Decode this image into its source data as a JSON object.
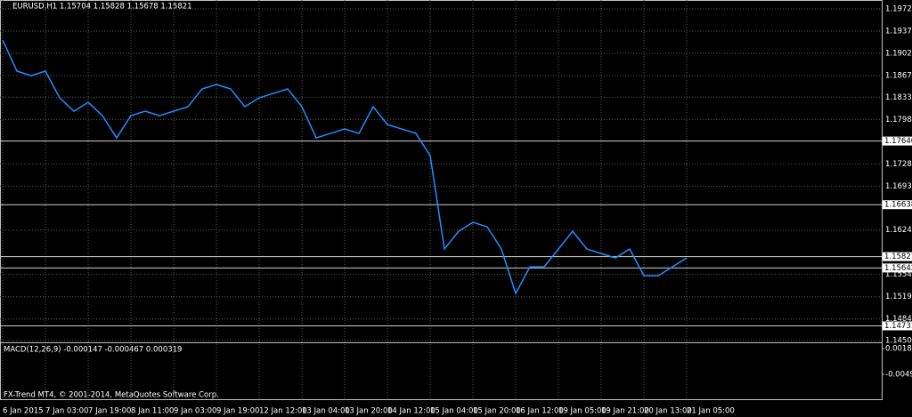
{
  "chart_data": [
    {
      "type": "line",
      "title": "EURUSD,H1  1.15704 1.15828 1.15678 1.15821",
      "categories": [
        "6 Jan 2015",
        null,
        null,
        "7 Jan 03:00",
        null,
        null,
        "7 Jan 19:00",
        null,
        null,
        "8 Jan 11:00",
        null,
        null,
        "9 Jan 03:00",
        null,
        null,
        "9 Jan 19:00",
        null,
        null,
        "12 Jan 12:00",
        null,
        null,
        "13 Jan 04:00",
        null,
        null,
        "13 Jan 20:00",
        null,
        null,
        "14 Jan 12:00",
        null,
        null,
        "15 Jan 04:00",
        null,
        null,
        "15 Jan 20:00",
        null,
        null,
        "16 Jan 12:00",
        null,
        null,
        "19 Jan 05:00",
        null,
        null,
        "19 Jan 21:00",
        null,
        null,
        "20 Jan 13:00",
        null,
        null,
        "21 Jan 05:00"
      ],
      "values": [
        1.1923,
        1.1874,
        1.1867,
        1.1874,
        1.1832,
        1.1811,
        1.1825,
        1.1804,
        1.1769,
        1.1804,
        1.1811,
        1.1804,
        1.1811,
        1.1818,
        1.1846,
        1.1853,
        1.1846,
        1.1818,
        1.1832,
        1.1839,
        1.1846,
        1.1818,
        1.1769,
        1.1776,
        1.1783,
        1.1776,
        1.1818,
        1.179,
        1.1783,
        1.1776,
        1.1741,
        1.1594,
        1.1622,
        1.1636,
        1.1629,
        1.1594,
        1.1524,
        1.1566,
        1.1566,
        1.1594,
        1.1622,
        1.1594,
        1.1587,
        1.158,
        1.1594,
        1.1552,
        1.1552,
        1.1566,
        1.158
      ],
      "color": "#1e90ff",
      "ylim": [
        1.145,
        1.1972
      ],
      "yticks": [
        {
          "value": 1.1972,
          "label": "1.19720"
        },
        {
          "value": 1.1937,
          "label": "1.19370"
        },
        {
          "value": 1.1902,
          "label": "1.19020"
        },
        {
          "value": 1.1867,
          "label": "1.18670"
        },
        {
          "value": 1.1833,
          "label": "1.18330"
        },
        {
          "value": 1.1798,
          "label": "1.17980"
        },
        {
          "value": 1.1728,
          "label": "1.17280"
        },
        {
          "value": 1.1693,
          "label": "1.16930"
        },
        {
          "value": 1.1624,
          "label": "1.16240"
        },
        {
          "value": 1.1554,
          "label": "1.15540"
        },
        {
          "value": 1.1519,
          "label": "1.15190"
        },
        {
          "value": 1.1484,
          "label": "1.14840"
        },
        {
          "value": 1.145,
          "label": "1.14500"
        }
      ],
      "levels": [
        {
          "value": 1.1764,
          "label": "1.17640"
        },
        1.16638,
        1.15821,
        1.15642,
        1.14731
      ],
      "grid": true
    },
    {
      "type": "indicator",
      "title": "MACD(12,26,9) -0.000147 -0.000467 0.000319",
      "ylim": [
        -0.004923,
        0.001803
      ],
      "yticks": [
        0.001803,
        -0.004923
      ],
      "annotation": "FX-Trend MT4, © 2001-2014, MetaQuotes Software Corp."
    }
  ]
}
